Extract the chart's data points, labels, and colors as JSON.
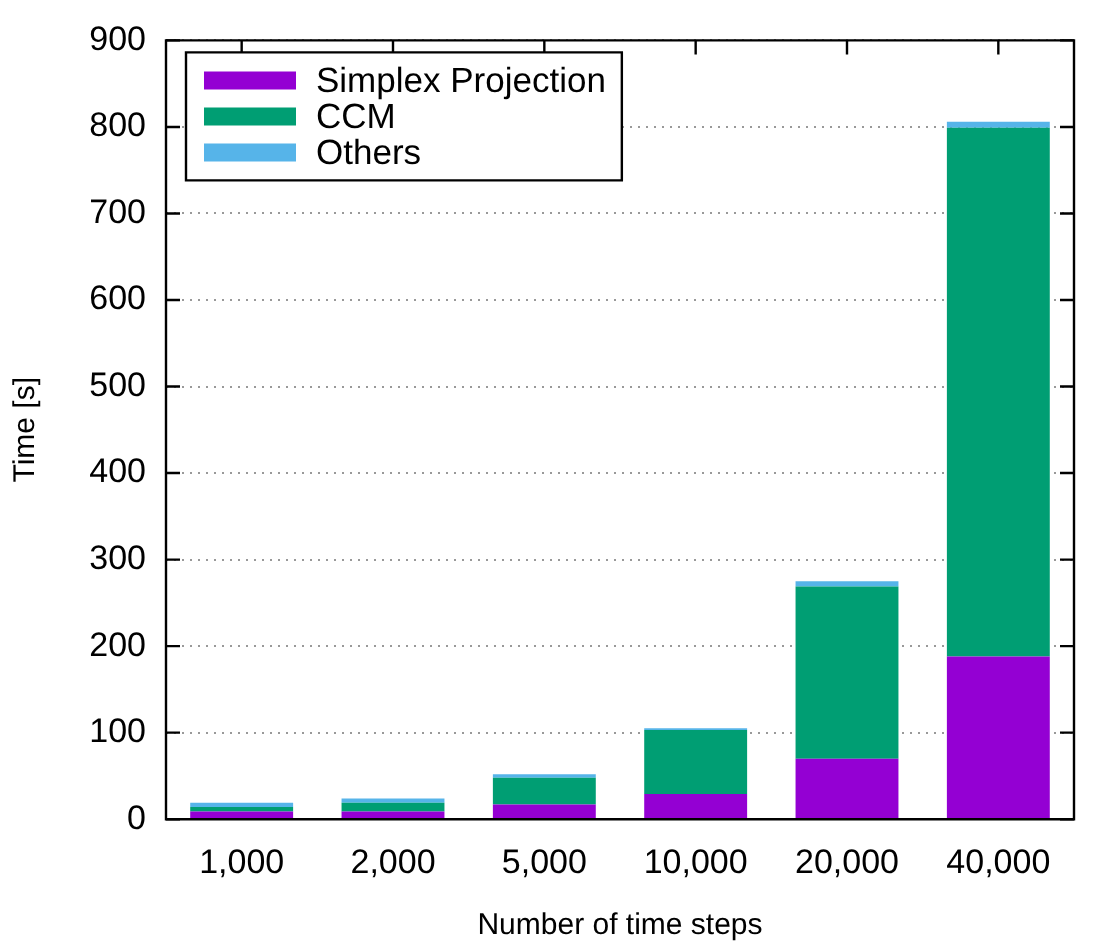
{
  "chart_data": {
    "type": "bar",
    "xlabel": "Number of time steps",
    "ylabel": "Time [s]",
    "categories": [
      "1,000",
      "2,000",
      "5,000",
      "10,000",
      "20,000",
      "40,000"
    ],
    "stacked": true,
    "series": [
      {
        "name": "Simplex Projection",
        "color": "#9400d3",
        "values": [
          9,
          9,
          17,
          29,
          70,
          188
        ]
      },
      {
        "name": "CCM",
        "color": "#009e73",
        "values": [
          5,
          10,
          31,
          74,
          199,
          611
        ]
      },
      {
        "name": "Others",
        "color": "#56b4e9",
        "values": [
          5,
          5,
          4,
          2,
          6,
          7
        ]
      }
    ],
    "ylim": [
      0,
      900
    ],
    "yticks": [
      0,
      100,
      200,
      300,
      400,
      500,
      600,
      700,
      800,
      900
    ],
    "grid": "y",
    "legend": "top left"
  }
}
